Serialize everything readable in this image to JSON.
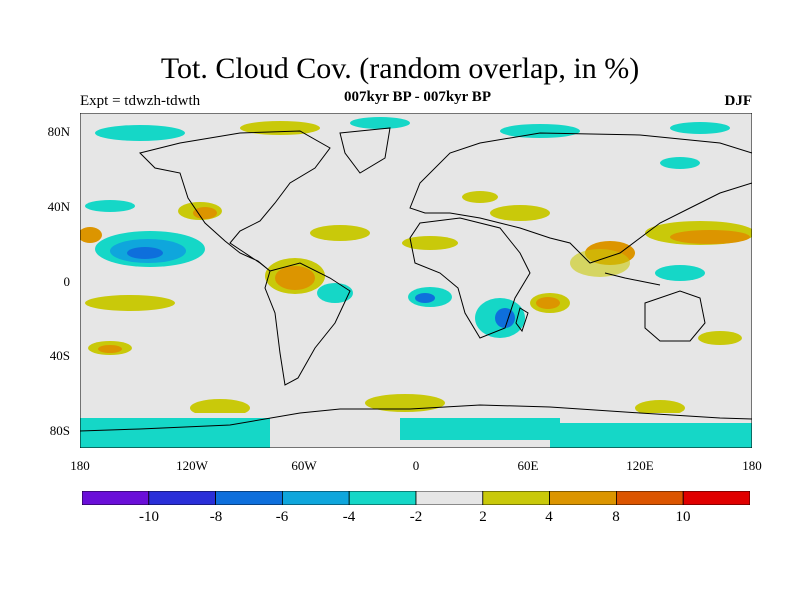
{
  "title": "Tot. Cloud Cov. (random overlap, in %)",
  "subtitle": "007kyr BP - 007kyr BP",
  "expt_label": "Expt = tdwzh-tdwth",
  "season": "DJF",
  "map": {
    "projection": "cylindrical-equidistant",
    "lon_range": [
      -180,
      180
    ],
    "lat_range": [
      -90,
      90
    ],
    "background_color": "#e6e6e6",
    "y_ticks": [
      "80N",
      "40N",
      "0",
      "40S",
      "80S"
    ],
    "x_ticks": [
      "180",
      "120W",
      "60W",
      "0",
      "60E",
      "120E",
      "180"
    ]
  },
  "colorbar": {
    "colors": [
      "#6a0fd8",
      "#2a2fd8",
      "#0e6fdc",
      "#0fa6dc",
      "#15d7c7",
      "#e6e6e6",
      "#c9c90a",
      "#dc9500",
      "#dc5500",
      "#e00000"
    ],
    "labels": [
      "-10",
      "-8",
      "-6",
      "-4",
      "-2",
      "2",
      "4",
      "8",
      "10"
    ]
  }
}
